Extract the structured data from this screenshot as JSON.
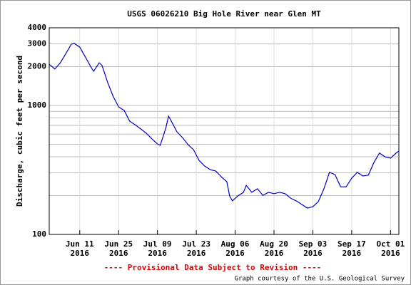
{
  "chart_data": {
    "type": "line",
    "title": "USGS 06026210 Big Hole River near Glen MT",
    "y_label": "Discharge, cubic feet per second",
    "footer": "---- Provisional Data Subject to Revision ----",
    "credit": "Graph courtesy of the U.S. Geological Survey",
    "log_scale": true,
    "grid": true,
    "xlim": [
      "2016-05-31",
      "2016-10-04"
    ],
    "xticks": [
      {
        "value": "2016-06-11",
        "label": [
          "Jun 11",
          "2016"
        ]
      },
      {
        "value": "2016-06-25",
        "label": [
          "Jun 25",
          "2016"
        ]
      },
      {
        "value": "2016-07-09",
        "label": [
          "Jul 09",
          "2016"
        ]
      },
      {
        "value": "2016-07-23",
        "label": [
          "Jul 23",
          "2016"
        ]
      },
      {
        "value": "2016-08-06",
        "label": [
          "Aug 06",
          "2016"
        ]
      },
      {
        "value": "2016-08-20",
        "label": [
          "Aug 20",
          "2016"
        ]
      },
      {
        "value": "2016-09-03",
        "label": [
          "Sep 03",
          "2016"
        ]
      },
      {
        "value": "2016-09-17",
        "label": [
          "Sep 17",
          "2016"
        ]
      },
      {
        "value": "2016-10-01",
        "label": [
          "Oct 01",
          "2016"
        ]
      }
    ],
    "ylim": [
      100,
      4000
    ],
    "yticks": [
      100,
      1000,
      2000,
      3000,
      4000
    ],
    "y_minor_gridlines": [
      200,
      300,
      400,
      500,
      600,
      700,
      800,
      900
    ],
    "x": [
      "2016-05-31",
      "2016-06-02",
      "2016-06-04",
      "2016-06-06",
      "2016-06-08",
      "2016-06-09",
      "2016-06-11",
      "2016-06-13",
      "2016-06-15",
      "2016-06-16",
      "2016-06-18",
      "2016-06-19",
      "2016-06-21",
      "2016-06-23",
      "2016-06-25",
      "2016-06-27",
      "2016-06-29",
      "2016-07-01",
      "2016-07-03",
      "2016-07-05",
      "2016-07-07",
      "2016-07-09",
      "2016-07-10",
      "2016-07-12",
      "2016-07-13",
      "2016-07-14",
      "2016-07-16",
      "2016-07-18",
      "2016-07-20",
      "2016-07-22",
      "2016-07-24",
      "2016-07-26",
      "2016-07-28",
      "2016-07-30",
      "2016-08-01",
      "2016-08-03",
      "2016-08-04",
      "2016-08-05",
      "2016-08-07",
      "2016-08-09",
      "2016-08-10",
      "2016-08-12",
      "2016-08-14",
      "2016-08-16",
      "2016-08-18",
      "2016-08-20",
      "2016-08-22",
      "2016-08-24",
      "2016-08-26",
      "2016-08-28",
      "2016-08-30",
      "2016-09-01",
      "2016-09-03",
      "2016-09-05",
      "2016-09-07",
      "2016-09-09",
      "2016-09-11",
      "2016-09-13",
      "2016-09-15",
      "2016-09-17",
      "2016-09-19",
      "2016-09-21",
      "2016-09-23",
      "2016-09-25",
      "2016-09-27",
      "2016-09-29",
      "2016-10-01",
      "2016-10-03",
      "2016-10-04"
    ],
    "series": [
      {
        "name": "Discharge",
        "color": "#0000c8",
        "values": [
          2090,
          1914,
          2140,
          2530,
          2990,
          3030,
          2830,
          2380,
          1990,
          1840,
          2140,
          2050,
          1520,
          1180,
          975,
          915,
          755,
          707,
          657,
          609,
          550,
          503,
          491,
          666,
          826,
          755,
          625,
          564,
          497,
          454,
          375,
          339,
          318,
          310,
          280,
          256,
          199,
          182,
          199,
          212,
          240,
          212,
          226,
          201,
          212,
          207,
          212,
          207,
          191,
          182,
          171,
          160,
          164,
          180,
          226,
          303,
          291,
          234,
          234,
          273,
          303,
          284,
          288,
          361,
          427,
          400,
          390,
          427,
          443
        ]
      }
    ]
  }
}
